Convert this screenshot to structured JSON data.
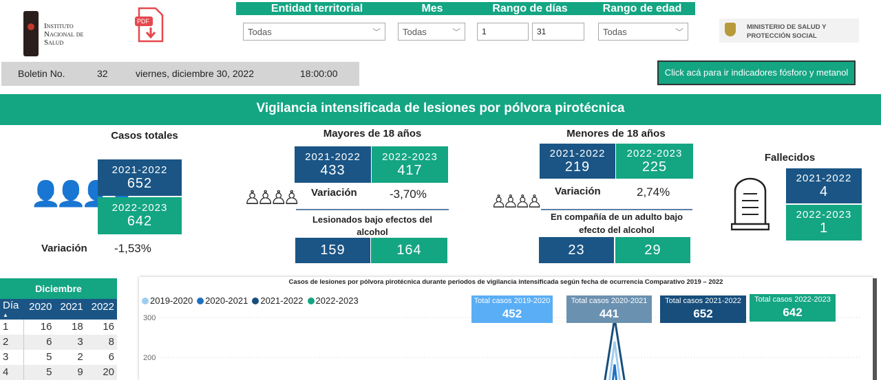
{
  "header": {
    "ins_logo_text": [
      "Instituto",
      "Nacional de",
      "Salud"
    ],
    "pdf_label": "PDF",
    "ministry_logo_text": [
      "MINISTERIO DE SALUD Y",
      "PROTECCIÓN SOCIAL"
    ]
  },
  "filters": {
    "entidad": {
      "label": "Entidad territorial",
      "value": "Todas"
    },
    "mes": {
      "label": "Mes",
      "value": "Todas"
    },
    "rango_dias": {
      "label": "Rango de días",
      "from": "1",
      "to": "31"
    },
    "rango_edad": {
      "label": "Rango de edad",
      "value": "Todas"
    }
  },
  "bulletin": {
    "label": "Boletin No.",
    "number": "32",
    "date": "viernes, diciembre 30, 2022",
    "time": "18:00:00"
  },
  "link_button": "Click acá para ir indicadores fósforo y metanol",
  "banner": "Vigilancia intensificada de lesiones por pólvora pirotécnica",
  "totales": {
    "title": "Casos totales",
    "p1": "2021-2022",
    "v1": "652",
    "p2": "2022-2023",
    "v2": "642",
    "var_label": "Variación",
    "var": "-1,53%"
  },
  "mayores": {
    "title": "Mayores de 18 años",
    "p1": "2021-2022",
    "v1": "433",
    "p2": "2022-2023",
    "v2": "417",
    "var_label": "Variación",
    "var": "-3,70%",
    "sub": "Lesionados bajo efectos del alcohol",
    "s1": "159",
    "s2": "164"
  },
  "menores": {
    "title": "Menores de 18 años",
    "p1": "2021-2022",
    "v1": "219",
    "p2": "2022-2023",
    "v2": "225",
    "var_label": "Variación",
    "var": "2,74%",
    "sub": "En compañía de un adulto bajo efecto del alcohol",
    "s1": "23",
    "s2": "29"
  },
  "fallecidos": {
    "title": "Fallecidos",
    "p1": "2021-2022",
    "v1": "4",
    "p2": "2022-2023",
    "v2": "1"
  },
  "table": {
    "title": "Diciembre",
    "headers": [
      "Día",
      "2020",
      "2021",
      "2022"
    ],
    "rows": [
      [
        "1",
        "16",
        "18",
        "16"
      ],
      [
        "2",
        "6",
        "3",
        "8"
      ],
      [
        "3",
        "5",
        "2",
        "6"
      ],
      [
        "4",
        "5",
        "9",
        "20"
      ]
    ]
  },
  "colors": {
    "teal": "#14a583",
    "navy": "#1a5585"
  },
  "chart_data": {
    "type": "line",
    "title": "Casos de lesiones por pólvora pirotécnica durante periodos de vigilancia intensificada según fecha de ocurrencia Comparativo 2019 – 2022",
    "legend_position": "top-left",
    "yticks": [
      "300",
      "200"
    ],
    "grid": true,
    "series": [
      {
        "name": "2019-2020",
        "color": "#9fcdf0",
        "peak": 240
      },
      {
        "name": "2020-2021",
        "color": "#1f6fc0",
        "peak": 182
      },
      {
        "name": "2021-2022",
        "color": "#174e7c",
        "peak": 298
      },
      {
        "name": "2022-2023",
        "color": "#14a583"
      }
    ],
    "totals": [
      {
        "label": "Total casos 2019-2020",
        "value": "452",
        "color": "#5aaef5"
      },
      {
        "label": "Total casos 2020-2021",
        "value": "441",
        "color": "#6b91b0"
      },
      {
        "label": "Total casos 2021-2022",
        "value": "652",
        "color": "#174e7c"
      },
      {
        "label": "Total casos 2022-2023",
        "value": "642",
        "color": "#14a583"
      }
    ]
  }
}
